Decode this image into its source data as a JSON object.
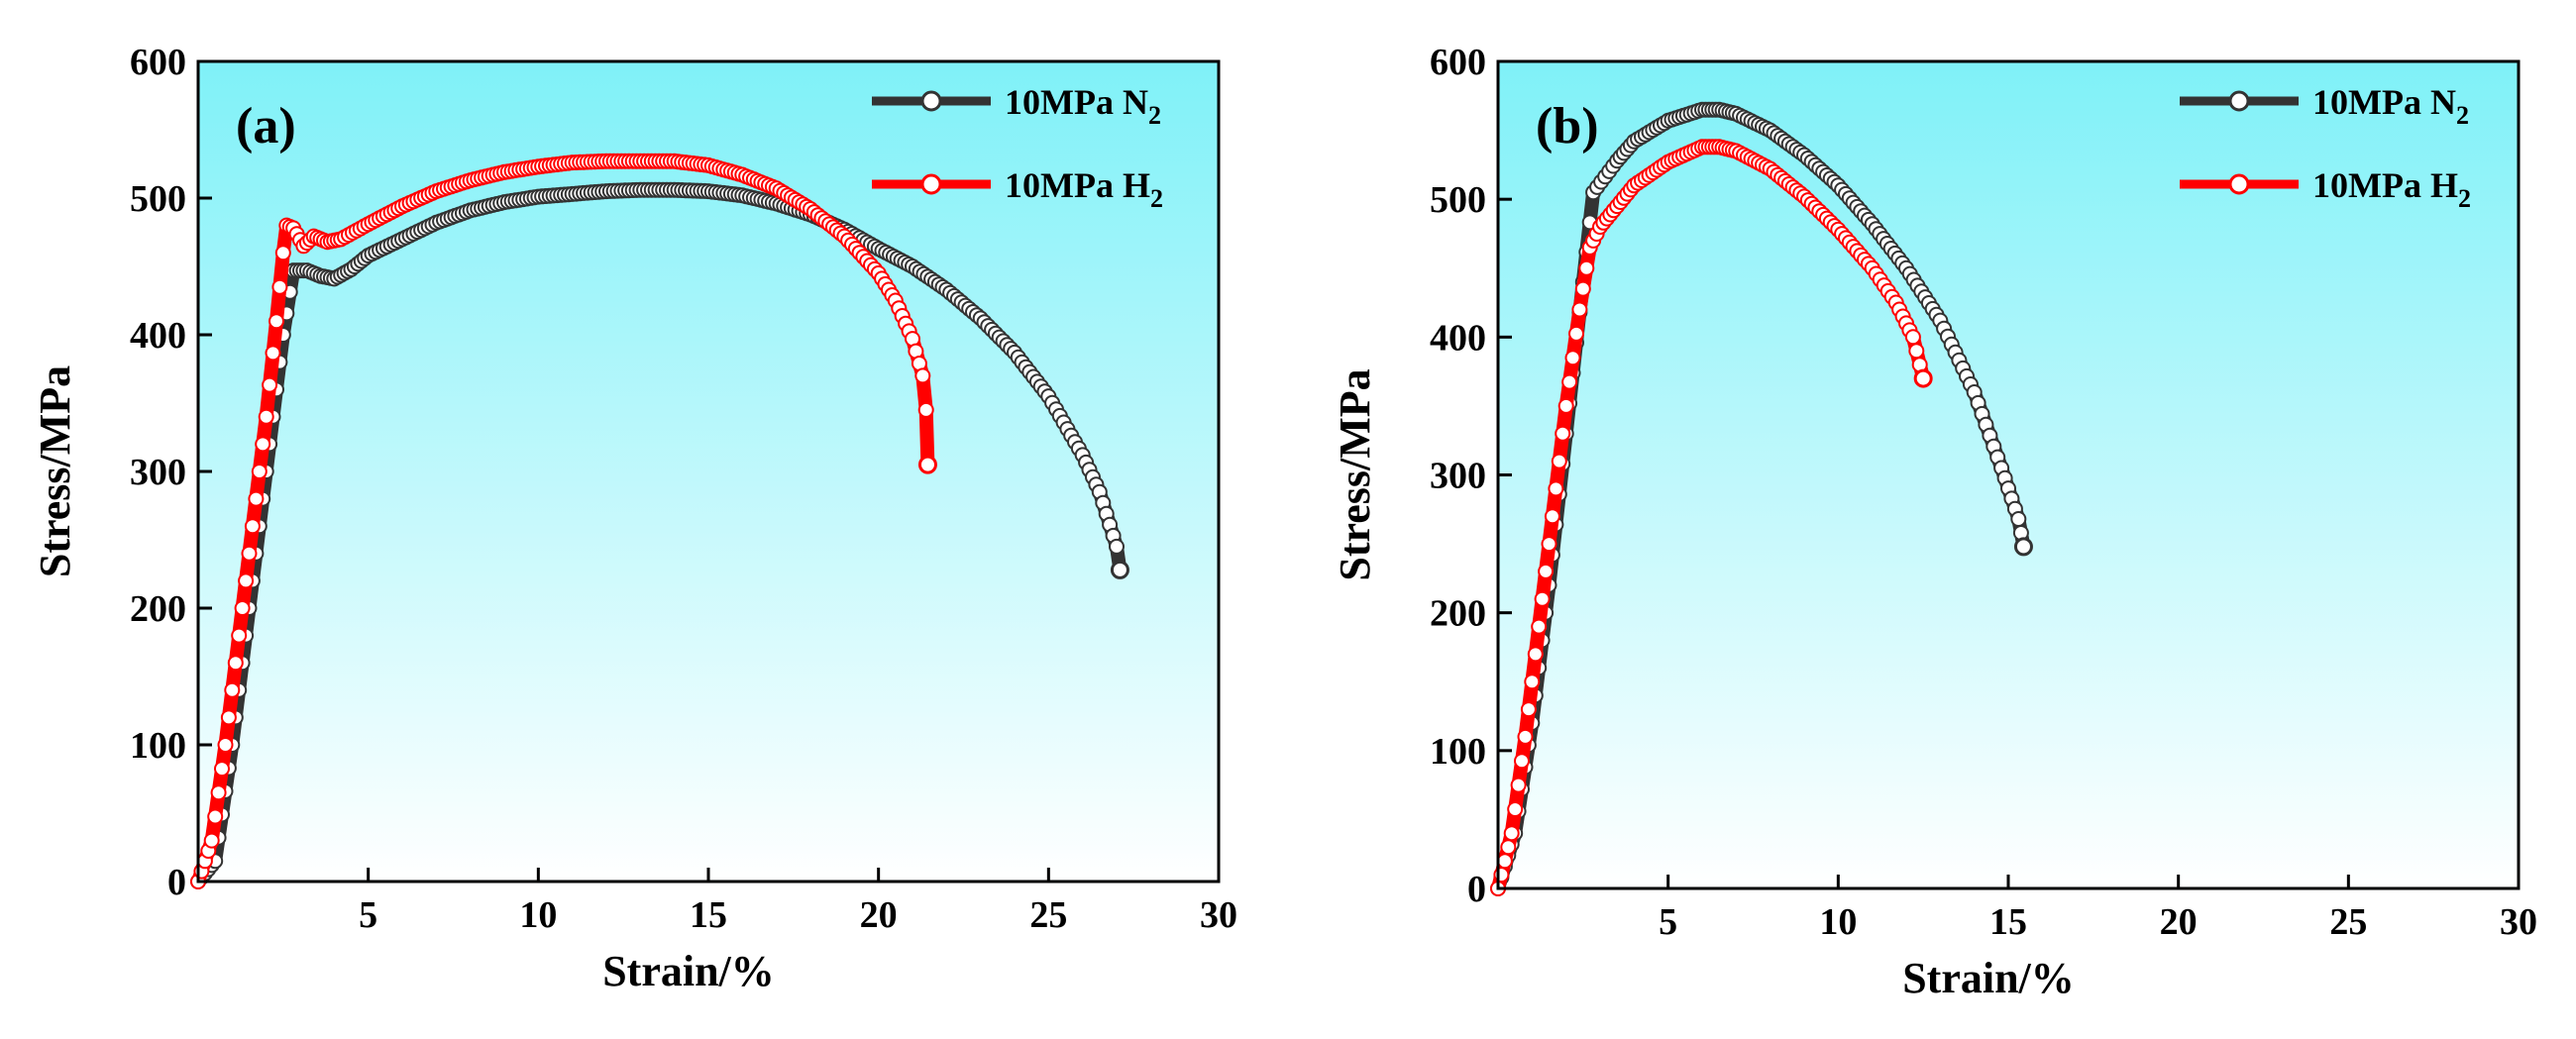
{
  "colors": {
    "gradient_top": "#7FF1F8",
    "gradient_bottom": "#FFFFFF",
    "series_n2": "#333333",
    "series_h2": "#FF0000"
  },
  "chart_data": [
    {
      "type": "line",
      "panel_label": "(a)",
      "xlabel": "Strain/%",
      "ylabel": "Stress/MPa",
      "xlim": [
        0,
        30
      ],
      "ylim": [
        0,
        600
      ],
      "xticks": [
        5,
        10,
        15,
        20,
        25,
        30
      ],
      "yticks": [
        0,
        100,
        200,
        300,
        400,
        500,
        600
      ],
      "legend_position": "top-right",
      "series": [
        {
          "name": "10MPa N2",
          "label_main": "10MPa N",
          "label_sub": "2",
          "color": "#333333",
          "points": [
            [
              0,
              0
            ],
            [
              0.5,
              15
            ],
            [
              1,
              100
            ],
            [
              1.5,
              200
            ],
            [
              2,
              300
            ],
            [
              2.5,
              400
            ],
            [
              2.8,
              447
            ],
            [
              3.2,
              447
            ],
            [
              3.6,
              443
            ],
            [
              4,
              441
            ],
            [
              4.5,
              448
            ],
            [
              5,
              458
            ],
            [
              6,
              470
            ],
            [
              7,
              482
            ],
            [
              8,
              491
            ],
            [
              9,
              497
            ],
            [
              10,
              501
            ],
            [
              11,
              503
            ],
            [
              12,
              505
            ],
            [
              13,
              506
            ],
            [
              14,
              506
            ],
            [
              15,
              505
            ],
            [
              16,
              502
            ],
            [
              17,
              496
            ],
            [
              18,
              488
            ],
            [
              19,
              477
            ],
            [
              20,
              463
            ],
            [
              21,
              450
            ],
            [
              22,
              433
            ],
            [
              23,
              412
            ],
            [
              24,
              387
            ],
            [
              25,
              355
            ],
            [
              26,
              312
            ],
            [
              26.5,
              285
            ],
            [
              27,
              245
            ],
            [
              27.1,
              228
            ]
          ]
        },
        {
          "name": "10MPa H2",
          "label_main": "10MPa H",
          "label_sub": "2",
          "color": "#FF0000",
          "points": [
            [
              0,
              0
            ],
            [
              0.4,
              30
            ],
            [
              0.8,
              100
            ],
            [
              1.2,
              180
            ],
            [
              1.6,
              260
            ],
            [
              2,
              340
            ],
            [
              2.3,
              410
            ],
            [
              2.5,
              460
            ],
            [
              2.6,
              480
            ],
            [
              2.8,
              478
            ],
            [
              3.1,
              465
            ],
            [
              3.4,
              472
            ],
            [
              3.8,
              468
            ],
            [
              4.2,
              470
            ],
            [
              5,
              481
            ],
            [
              6,
              494
            ],
            [
              7,
              505
            ],
            [
              8,
              513
            ],
            [
              9,
              519
            ],
            [
              10,
              523
            ],
            [
              11,
              526
            ],
            [
              12,
              527
            ],
            [
              13,
              527
            ],
            [
              14,
              527
            ],
            [
              15,
              524
            ],
            [
              16,
              517
            ],
            [
              17,
              507
            ],
            [
              18,
              492
            ],
            [
              19,
              472
            ],
            [
              20,
              445
            ],
            [
              20.5,
              425
            ],
            [
              21,
              397
            ],
            [
              21.3,
              370
            ],
            [
              21.4,
              345
            ],
            [
              21.45,
              305
            ]
          ]
        }
      ]
    },
    {
      "type": "line",
      "panel_label": "(b)",
      "xlabel": "Strain/%",
      "ylabel": "Stress/MPa",
      "xlim": [
        0,
        30
      ],
      "ylim": [
        0,
        600
      ],
      "xticks": [
        5,
        10,
        15,
        20,
        25,
        30
      ],
      "yticks": [
        0,
        100,
        200,
        300,
        400,
        500,
        600
      ],
      "legend_position": "top-right",
      "series": [
        {
          "name": "10MPa N2",
          "label_main": "10MPa N",
          "label_sub": "2",
          "color": "#333333",
          "points": [
            [
              0,
              0
            ],
            [
              0.5,
              40
            ],
            [
              1,
              120
            ],
            [
              1.5,
              220
            ],
            [
              2,
              330
            ],
            [
              2.5,
              440
            ],
            [
              2.8,
              505
            ],
            [
              3.5,
              528
            ],
            [
              4,
              542
            ],
            [
              5,
              557
            ],
            [
              6,
              565
            ],
            [
              6.5,
              565
            ],
            [
              7,
              562
            ],
            [
              8,
              550
            ],
            [
              9,
              532
            ],
            [
              10,
              510
            ],
            [
              11,
              482
            ],
            [
              12,
              450
            ],
            [
              13,
              412
            ],
            [
              14,
              360
            ],
            [
              14.8,
              305
            ],
            [
              15.3,
              268
            ],
            [
              15.45,
              248
            ]
          ]
        },
        {
          "name": "10MPa H2",
          "label_main": "10MPa H",
          "label_sub": "2",
          "color": "#FF0000",
          "points": [
            [
              0,
              0
            ],
            [
              0.4,
              40
            ],
            [
              0.8,
              110
            ],
            [
              1.2,
              190
            ],
            [
              1.6,
              270
            ],
            [
              2,
              350
            ],
            [
              2.4,
              420
            ],
            [
              2.7,
              465
            ],
            [
              3,
              480
            ],
            [
              3.5,
              495
            ],
            [
              4,
              510
            ],
            [
              5,
              527
            ],
            [
              6,
              538
            ],
            [
              6.5,
              538
            ],
            [
              7,
              535
            ],
            [
              8,
              522
            ],
            [
              9,
              502
            ],
            [
              10,
              478
            ],
            [
              11,
              450
            ],
            [
              11.7,
              425
            ],
            [
              12.2,
              400
            ],
            [
              12.5,
              370
            ]
          ]
        }
      ]
    }
  ]
}
